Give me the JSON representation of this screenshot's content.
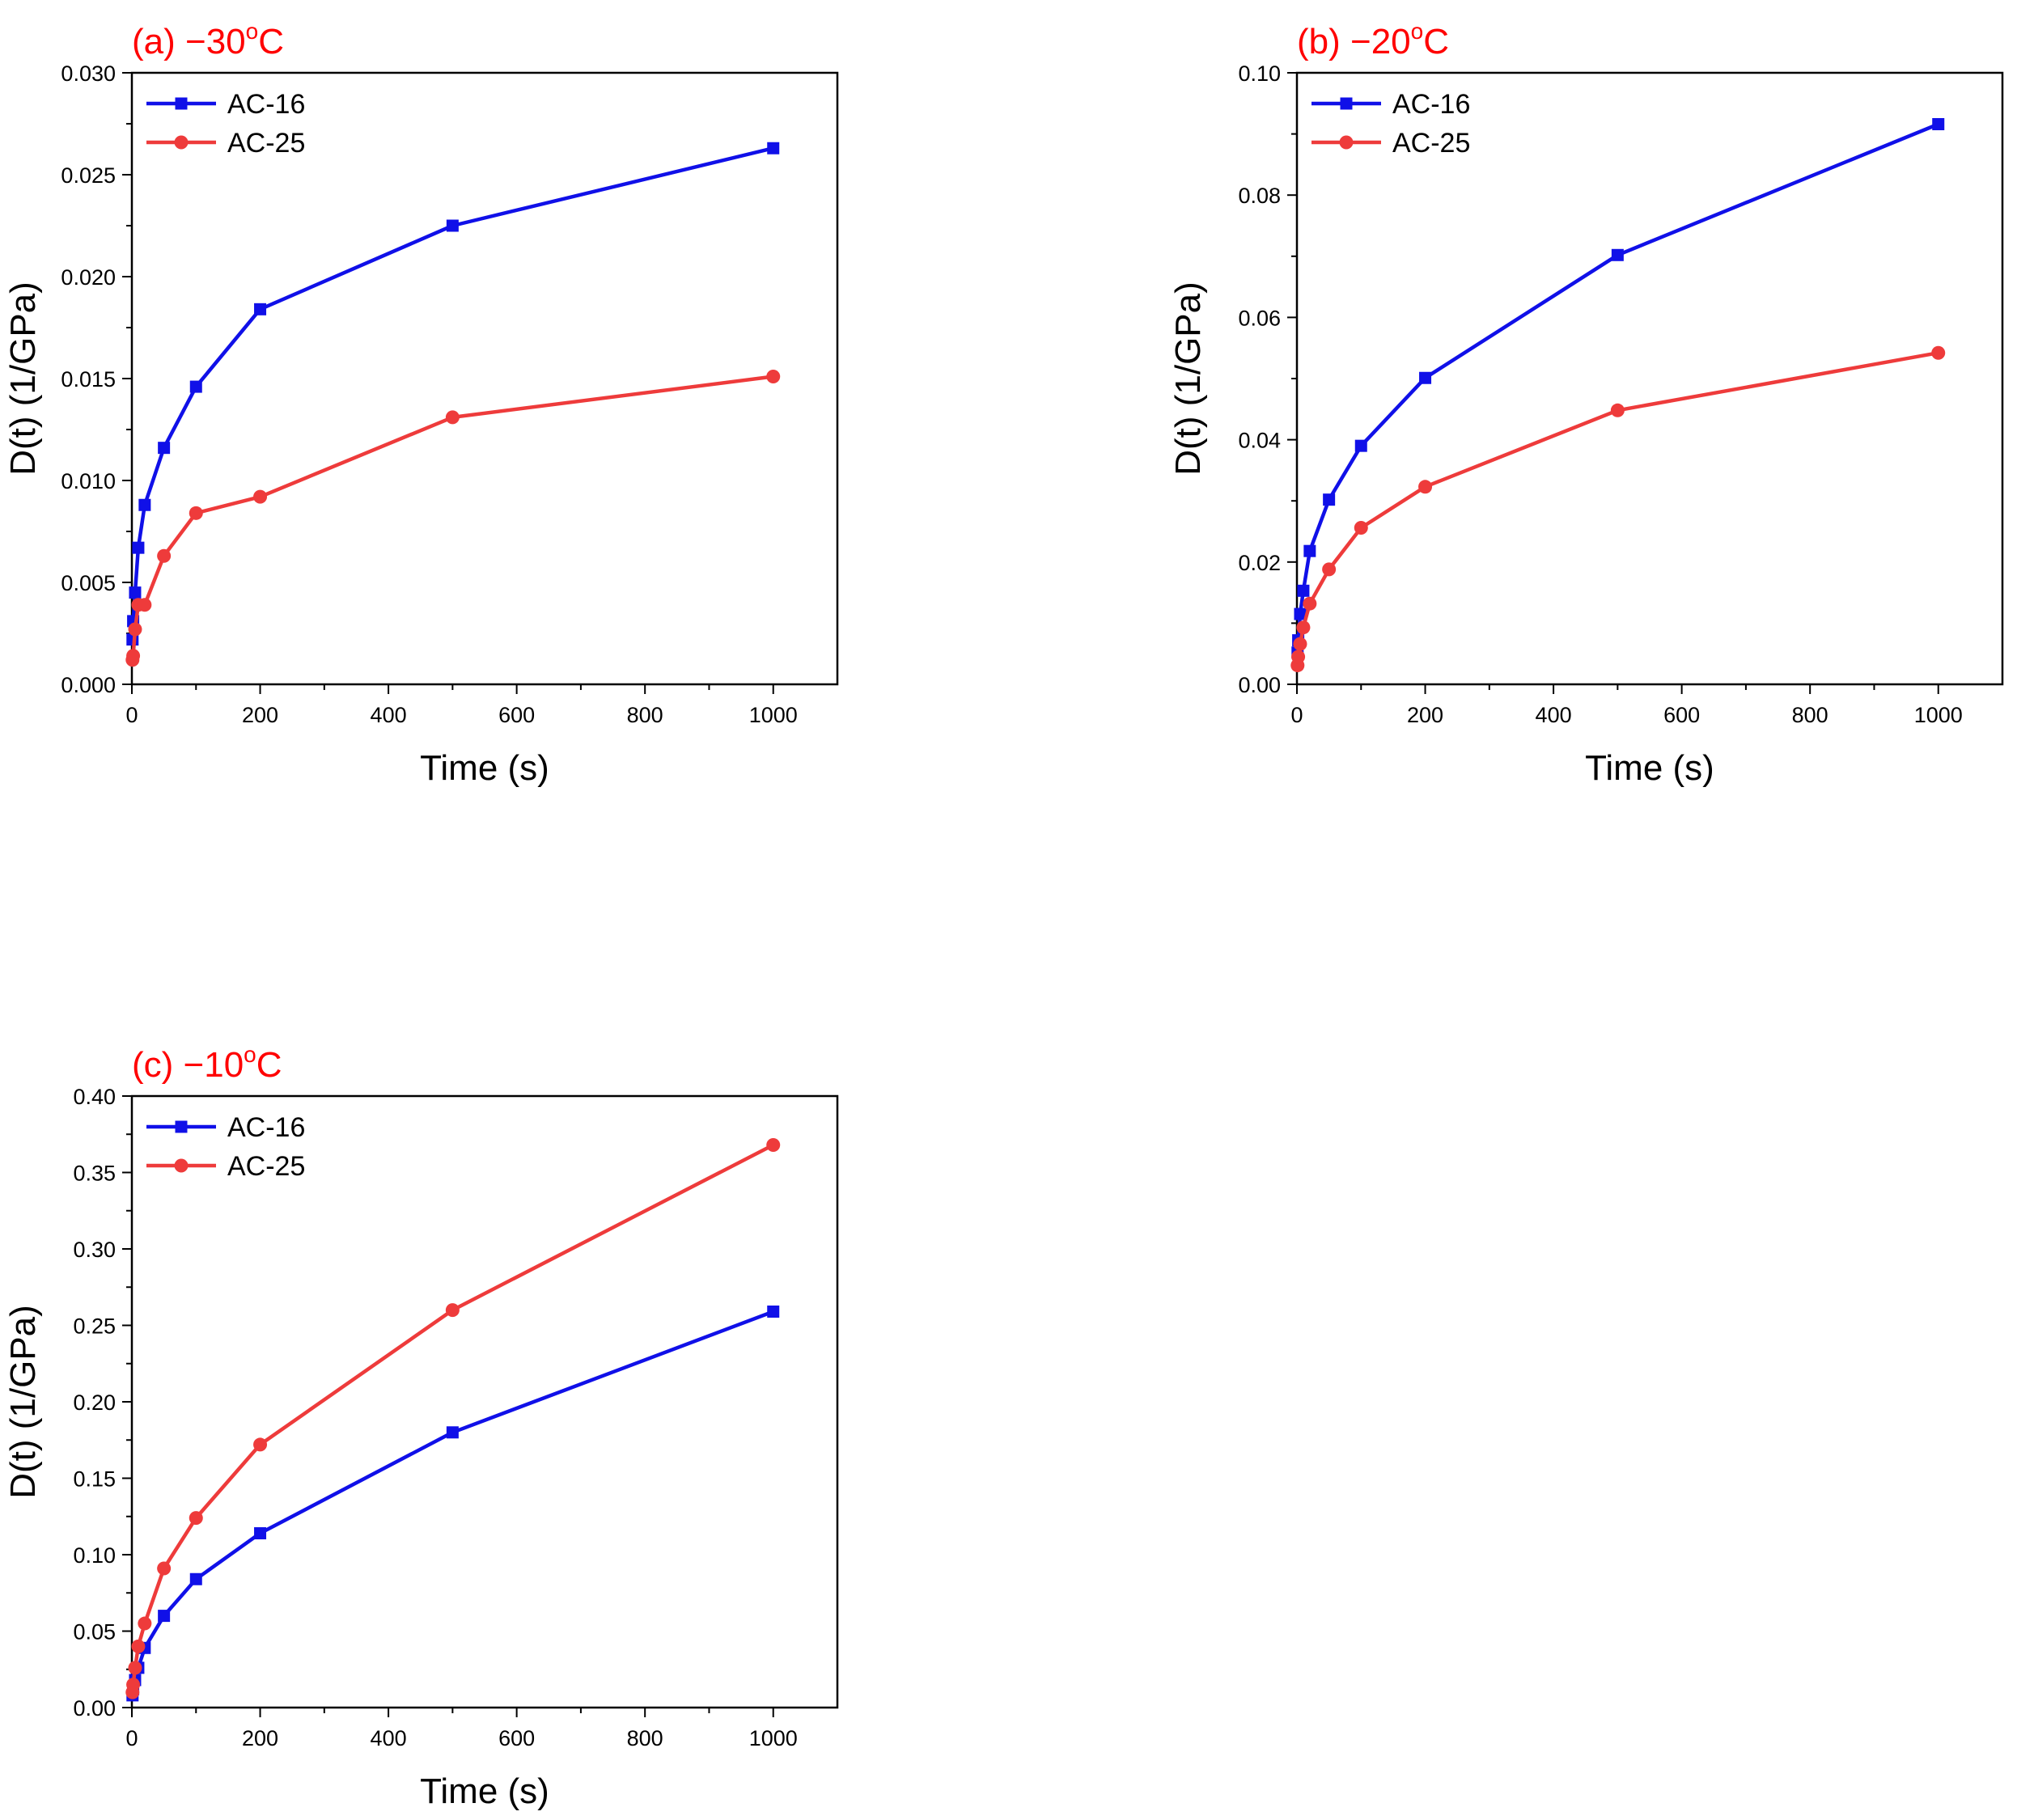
{
  "figure": {
    "series_styles": [
      {
        "name": "AC-16",
        "color": "#1010e8",
        "marker": "square"
      },
      {
        "name": "AC-25",
        "color": "#ee3b3b",
        "marker": "circle"
      }
    ]
  },
  "chart_data": [
    {
      "type": "line",
      "panel": "a",
      "title": "(a) −30",
      "title_suffix": "C",
      "degree_mark": "o",
      "xlabel": "Time (s)",
      "ylabel": "D(t) (1/GPa)",
      "xlim": [
        0,
        1100
      ],
      "ylim": [
        0,
        0.03
      ],
      "xticks": [
        0,
        200,
        400,
        600,
        800,
        1000
      ],
      "xtick_labels": [
        "0",
        "200",
        "400",
        "600",
        "800",
        "1000"
      ],
      "yticks": [
        0,
        0.005,
        0.01,
        0.015,
        0.02,
        0.025,
        0.03
      ],
      "ytick_labels": [
        "0.000",
        "0.005",
        "0.010",
        "0.015",
        "0.020",
        "0.025",
        "0.030"
      ],
      "legend": [
        "AC-16",
        "AC-25"
      ],
      "legend_position": "top-left",
      "series": [
        {
          "name": "AC-16",
          "x": [
            1,
            2,
            5,
            10,
            20,
            50,
            100,
            200,
            500,
            1000
          ],
          "y": [
            0.0022,
            0.0031,
            0.0045,
            0.0067,
            0.0088,
            0.0116,
            0.0146,
            0.0184,
            0.0225,
            0.0263
          ]
        },
        {
          "name": "AC-25",
          "x": [
            1,
            2,
            5,
            10,
            20,
            50,
            100,
            200,
            500,
            1000
          ],
          "y": [
            0.0012,
            0.0014,
            0.0027,
            0.0039,
            0.0039,
            0.0063,
            0.0084,
            0.0092,
            0.0131,
            0.0151
          ]
        }
      ]
    },
    {
      "type": "line",
      "panel": "b",
      "title": "(b) −20",
      "title_suffix": "C",
      "degree_mark": "o",
      "xlabel": "Time (s)",
      "ylabel": "D(t) (1/GPa)",
      "xlim": [
        0,
        1100
      ],
      "ylim": [
        0,
        0.1
      ],
      "xticks": [
        0,
        200,
        400,
        600,
        800,
        1000
      ],
      "xtick_labels": [
        "0",
        "200",
        "400",
        "600",
        "800",
        "1000"
      ],
      "yticks": [
        0,
        0.02,
        0.04,
        0.06,
        0.08,
        0.1
      ],
      "ytick_labels": [
        "0.00",
        "0.02",
        "0.04",
        "0.06",
        "0.08",
        "0.10"
      ],
      "legend": [
        "AC-16",
        "AC-25"
      ],
      "legend_position": "top-left",
      "series": [
        {
          "name": "AC-16",
          "x": [
            1,
            2,
            5,
            10,
            20,
            50,
            100,
            200,
            500,
            1000
          ],
          "y": [
            0.0052,
            0.0072,
            0.0115,
            0.0153,
            0.0218,
            0.0302,
            0.039,
            0.0501,
            0.0702,
            0.0916
          ]
        },
        {
          "name": "AC-25",
          "x": [
            1,
            2,
            5,
            10,
            20,
            50,
            100,
            200,
            500,
            1000
          ],
          "y": [
            0.0031,
            0.0045,
            0.0066,
            0.0093,
            0.0132,
            0.0188,
            0.0256,
            0.0323,
            0.0448,
            0.0542
          ]
        }
      ]
    },
    {
      "type": "line",
      "panel": "c",
      "title": "(c) −10",
      "title_suffix": "C",
      "degree_mark": "o",
      "xlabel": "Time (s)",
      "ylabel": "D(t) (1/GPa)",
      "xlim": [
        0,
        1100
      ],
      "ylim": [
        0,
        0.4
      ],
      "xticks": [
        0,
        200,
        400,
        600,
        800,
        1000
      ],
      "xtick_labels": [
        "0",
        "200",
        "400",
        "600",
        "800",
        "1000"
      ],
      "yticks": [
        0,
        0.05,
        0.1,
        0.15,
        0.2,
        0.25,
        0.3,
        0.35,
        0.4
      ],
      "ytick_labels": [
        "0.00",
        "0.05",
        "0.10",
        "0.15",
        "0.20",
        "0.25",
        "0.30",
        "0.35",
        "0.40"
      ],
      "legend": [
        "AC-16",
        "AC-25"
      ],
      "legend_position": "top-left",
      "series": [
        {
          "name": "AC-16",
          "x": [
            1,
            2,
            5,
            10,
            20,
            50,
            100,
            200,
            500,
            1000
          ],
          "y": [
            0.008,
            0.012,
            0.018,
            0.026,
            0.039,
            0.06,
            0.084,
            0.114,
            0.18,
            0.259
          ]
        },
        {
          "name": "AC-25",
          "x": [
            1,
            2,
            5,
            10,
            20,
            50,
            100,
            200,
            500,
            1000
          ],
          "y": [
            0.01,
            0.015,
            0.026,
            0.04,
            0.055,
            0.091,
            0.124,
            0.172,
            0.26,
            0.368
          ]
        }
      ]
    }
  ]
}
